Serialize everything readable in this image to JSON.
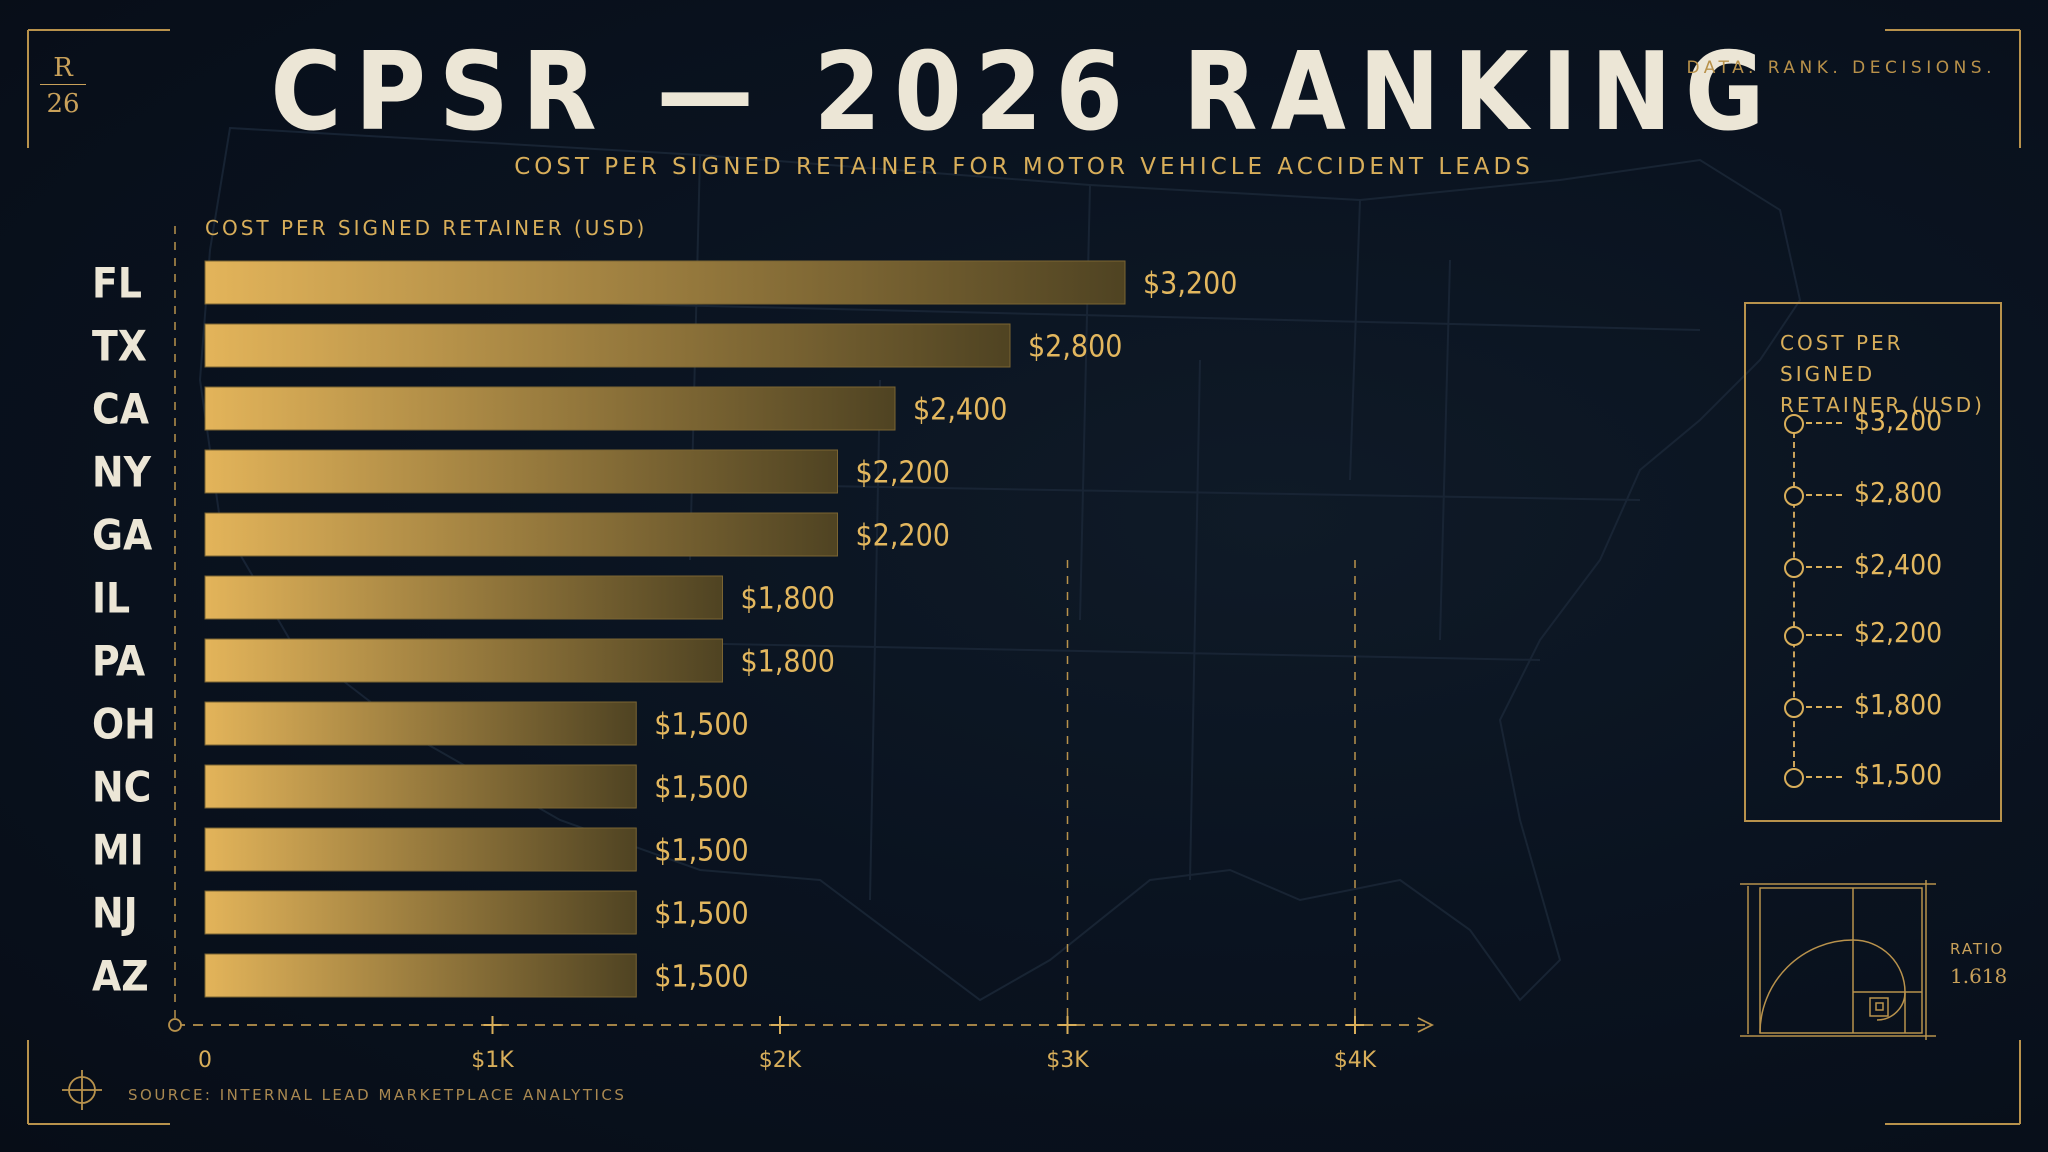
{
  "header": {
    "monogram_top": "R",
    "monogram_bottom": "26",
    "title": "CPSR — 2026 RANKING",
    "subtitle": "COST PER SIGNED RETAINER FOR MOTOR VEHICLE ACCIDENT LEADS",
    "tagline": "DATA. RANK. DECISIONS."
  },
  "chart_data": {
    "type": "bar",
    "orientation": "horizontal",
    "title": "CPSR — 2026 RANKING",
    "subtitle": "COST PER SIGNED RETAINER FOR MOTOR VEHICLE ACCIDENT LEADS",
    "xlabel": "COST PER SIGNED RETAINER (USD)",
    "ylabel": "",
    "categories": [
      "FL",
      "TX",
      "CA",
      "NY",
      "GA",
      "IL",
      "PA",
      "OH",
      "NC",
      "MI",
      "NJ",
      "AZ"
    ],
    "values": [
      3200,
      2800,
      2400,
      2200,
      2200,
      1800,
      1800,
      1500,
      1500,
      1500,
      1500,
      1500
    ],
    "value_labels": [
      "$3,200",
      "$2,800",
      "$2,400",
      "$2,200",
      "$2,200",
      "$1,800",
      "$1,800",
      "$1,500",
      "$1,500",
      "$1,500",
      "$1,500",
      "$1,500"
    ],
    "x_ticks": [
      0,
      1000,
      2000,
      3000,
      4000
    ],
    "x_tick_labels": [
      "0",
      "$1K",
      "$2K",
      "$3K",
      "$4K"
    ],
    "grid": false,
    "colors": {
      "bar_start": "#e3b45a",
      "bar_end": "#4f4322",
      "label": "#e3b75e"
    }
  },
  "legend": {
    "title": "COST PER SIGNED RETAINER (USD)",
    "items": [
      "$3,200",
      "$2,800",
      "$2,400",
      "$2,200",
      "$1,800",
      "$1,500"
    ]
  },
  "ratio": {
    "label": "RATIO",
    "value": "1.618"
  },
  "source": "SOURCE: INTERNAL LEAD MARKETPLACE ANALYTICS",
  "colors": {
    "background": "#0a1320",
    "accent": "#d8ae5a",
    "title": "#ece6d6"
  }
}
